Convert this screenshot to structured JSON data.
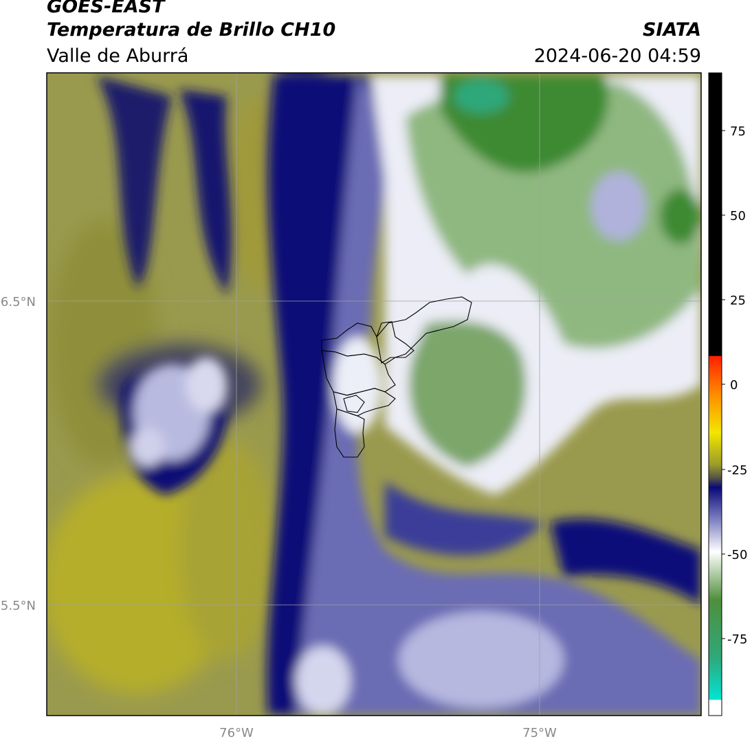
{
  "header": {
    "satellite": "GOES-EAST",
    "product": "Temperatura de Brillo CH10",
    "region": "Valle de Aburrá",
    "agency": "SIATA",
    "datetime": "2024-06-20 04:59"
  },
  "map": {
    "lon_ticks": [
      "76°W",
      "75°W"
    ],
    "lat_ticks": [
      "6.5°N",
      "5.5°N"
    ]
  },
  "colorbar": {
    "ticks": [
      "75",
      "50",
      "25",
      "0",
      "-25",
      "-50",
      "-75"
    ],
    "colors": {
      "black": "#000000",
      "red": "#ff2000",
      "orange": "#ff8c00",
      "yellow": "#f2e600",
      "olive": "#9a9a2a",
      "navy": "#0a0a78",
      "lavender": "#aeb0d8",
      "white": "#ffffff",
      "green": "#4f8f3a",
      "cyan": "#00e5d4"
    }
  }
}
